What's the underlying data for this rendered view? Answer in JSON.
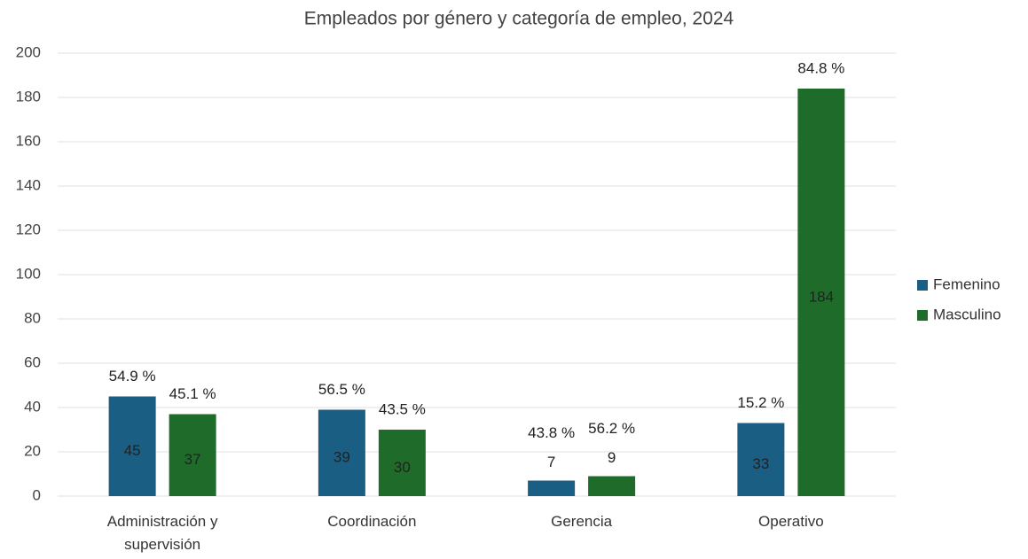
{
  "chart_data": {
    "type": "bar",
    "title": "Empleados por género y categoría de empleo, 2024",
    "categories": [
      "Administración y supervisión",
      "Coordinación",
      "Gerencia",
      "Operativo"
    ],
    "series": [
      {
        "name": "Femenino",
        "color": "#1b5e84",
        "values": [
          45,
          39,
          7,
          33
        ],
        "share_labels": [
          "54.9 %",
          "56.5 %",
          "43.8 %",
          "15.2 %"
        ]
      },
      {
        "name": "Masculino",
        "color": "#1f6b2a",
        "values": [
          37,
          30,
          9,
          184
        ],
        "share_labels": [
          "45.1 %",
          "43.5 %",
          "56.2 %",
          "84.8 %"
        ]
      }
    ],
    "ylim": [
      0,
      200
    ],
    "yticks": [
      0,
      20,
      40,
      60,
      80,
      100,
      120,
      140,
      160,
      180,
      200
    ],
    "grid": true,
    "legend": "right"
  }
}
